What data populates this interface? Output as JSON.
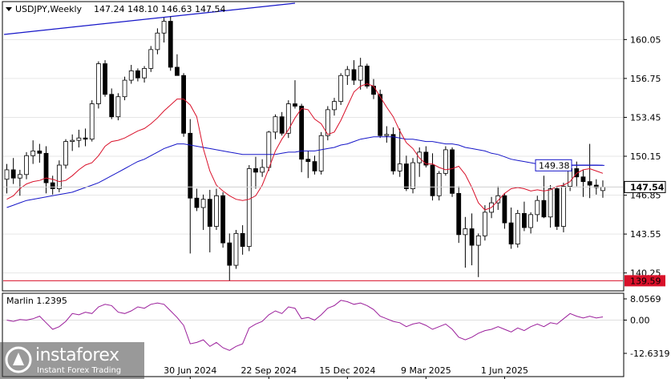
{
  "header": {
    "symbol": "USDJPY,Weekly",
    "ohlc": "147.24 148.10 146.63 147.54"
  },
  "indicator": {
    "name": "Marlin 1.2395",
    "ticks": [
      "8.0569",
      "0.00",
      "-12.6319"
    ]
  },
  "price_labels": {
    "current": "147.54",
    "ma_value": "149.38",
    "support": "139.59"
  },
  "colors": {
    "bull": "#ffffff",
    "bear": "#000000",
    "red_ma": "#d9112a",
    "blue_ma": "#1616c8",
    "oscillator": "#9b1f9b",
    "support_label_bg": "#d9112a",
    "ma_label_border": "#1616c8"
  },
  "watermark": {
    "brand": "instaforex",
    "tagline": "Instant Forex Trading"
  },
  "chart_data": {
    "type": "candlestick",
    "timeframe": "Weekly",
    "y_ticks": [
      160.05,
      156.75,
      153.45,
      150.15,
      146.85,
      143.55,
      140.25
    ],
    "ylim": [
      138.8,
      163.2
    ],
    "x_labels": [
      "30 Jun 2024",
      "22 Sep 2024",
      "15 Dec 2024",
      "9 Mar 2025",
      "1 Jun 2025"
    ],
    "x_label_bar_index": [
      28,
      40,
      52,
      64,
      76
    ],
    "horizontal_levels": [
      139.59
    ],
    "candles": [
      [
        148.2,
        149.5,
        147.0,
        149.0
      ],
      [
        149.0,
        150.0,
        147.8,
        148.3
      ],
      [
        148.3,
        149.0,
        146.8,
        148.6
      ],
      [
        148.6,
        150.5,
        148.2,
        150.2
      ],
      [
        150.2,
        151.5,
        149.5,
        150.6
      ],
      [
        150.6,
        151.2,
        149.6,
        150.4
      ],
      [
        150.4,
        151.0,
        147.0,
        147.9
      ],
      [
        147.9,
        148.5,
        146.9,
        147.4
      ],
      [
        147.4,
        149.8,
        147.1,
        149.4
      ],
      [
        149.4,
        151.6,
        149.1,
        151.4
      ],
      [
        151.4,
        152.0,
        150.6,
        151.5
      ],
      [
        151.5,
        152.4,
        150.9,
        151.7
      ],
      [
        151.7,
        152.5,
        151.0,
        151.6
      ],
      [
        151.6,
        154.9,
        151.4,
        154.6
      ],
      [
        154.6,
        158.2,
        154.2,
        158.0
      ],
      [
        158.0,
        158.3,
        155.2,
        155.4
      ],
      [
        155.4,
        155.9,
        153.3,
        153.5
      ],
      [
        153.5,
        155.5,
        153.2,
        155.2
      ],
      [
        155.2,
        156.9,
        154.9,
        156.6
      ],
      [
        156.6,
        157.9,
        156.3,
        157.4
      ],
      [
        157.4,
        157.6,
        156.5,
        156.8
      ],
      [
        156.8,
        157.8,
        156.4,
        157.6
      ],
      [
        157.6,
        159.5,
        157.3,
        159.2
      ],
      [
        159.2,
        161.0,
        158.8,
        160.6
      ],
      [
        160.6,
        161.9,
        159.8,
        161.6
      ],
      [
        161.6,
        162.0,
        157.4,
        157.7
      ],
      [
        157.7,
        158.8,
        157.0,
        157.0
      ],
      [
        157.0,
        157.2,
        151.8,
        152.1
      ],
      [
        152.1,
        153.3,
        141.9,
        146.6
      ],
      [
        146.6,
        147.4,
        145.5,
        145.8
      ],
      [
        145.8,
        146.9,
        143.9,
        146.5
      ],
      [
        146.5,
        147.3,
        142.0,
        144.2
      ],
      [
        144.2,
        147.4,
        143.9,
        146.8
      ],
      [
        146.8,
        147.1,
        142.4,
        142.8
      ],
      [
        142.8,
        143.6,
        139.6,
        140.9
      ],
      [
        140.9,
        143.9,
        140.6,
        143.6
      ],
      [
        143.6,
        144.3,
        141.8,
        142.5
      ],
      [
        142.5,
        149.4,
        142.1,
        149.1
      ],
      [
        149.1,
        150.1,
        147.4,
        148.8
      ],
      [
        148.8,
        149.9,
        148.4,
        149.2
      ],
      [
        149.2,
        152.3,
        148.9,
        152.2
      ],
      [
        152.2,
        153.7,
        151.6,
        153.5
      ],
      [
        153.5,
        153.9,
        151.9,
        152.1
      ],
      [
        152.1,
        154.9,
        151.7,
        154.6
      ],
      [
        154.6,
        156.6,
        154.2,
        154.4
      ],
      [
        154.4,
        154.6,
        148.8,
        149.9
      ],
      [
        149.9,
        150.6,
        148.3,
        149.7
      ],
      [
        149.7,
        150.2,
        148.6,
        148.9
      ],
      [
        148.9,
        152.2,
        148.6,
        151.9
      ],
      [
        151.9,
        154.4,
        151.5,
        154.1
      ],
      [
        154.1,
        155.1,
        153.6,
        154.8
      ],
      [
        154.8,
        157.2,
        154.5,
        157.0
      ],
      [
        157.0,
        157.8,
        156.2,
        157.5
      ],
      [
        157.5,
        158.3,
        156.2,
        156.6
      ],
      [
        156.6,
        158.5,
        155.8,
        157.8
      ],
      [
        157.8,
        158.0,
        155.9,
        156.1
      ],
      [
        156.1,
        156.7,
        155.0,
        155.4
      ],
      [
        155.4,
        155.8,
        151.7,
        151.9
      ],
      [
        151.9,
        152.7,
        151.3,
        152.0
      ],
      [
        152.0,
        152.6,
        148.6,
        148.9
      ],
      [
        148.9,
        152.5,
        148.4,
        149.5
      ],
      [
        149.5,
        150.2,
        147.2,
        147.4
      ],
      [
        147.4,
        150.0,
        147.0,
        149.6
      ],
      [
        149.6,
        150.9,
        148.4,
        150.5
      ],
      [
        150.5,
        151.0,
        149.2,
        149.4
      ],
      [
        149.4,
        150.4,
        146.4,
        146.8
      ],
      [
        146.8,
        148.9,
        146.4,
        148.7
      ],
      [
        148.7,
        151.0,
        148.5,
        150.7
      ],
      [
        150.7,
        150.9,
        146.7,
        147.0
      ],
      [
        147.0,
        147.6,
        142.8,
        143.5
      ],
      [
        143.5,
        145.0,
        140.7,
        144.0
      ],
      [
        144.0,
        145.3,
        140.9,
        142.6
      ],
      [
        142.6,
        143.6,
        139.9,
        143.4
      ],
      [
        143.4,
        146.0,
        143.0,
        145.4
      ],
      [
        145.4,
        146.7,
        144.9,
        146.2
      ],
      [
        146.2,
        147.6,
        145.6,
        146.8
      ],
      [
        146.8,
        147.0,
        144.0,
        144.5
      ],
      [
        144.5,
        145.8,
        142.3,
        142.7
      ],
      [
        142.7,
        145.6,
        142.4,
        145.3
      ],
      [
        145.3,
        146.3,
        143.8,
        144.1
      ],
      [
        144.1,
        145.4,
        143.6,
        145.2
      ],
      [
        145.2,
        146.8,
        144.6,
        146.4
      ],
      [
        146.4,
        148.5,
        144.9,
        145.0
      ],
      [
        145.0,
        147.7,
        144.1,
        147.4
      ],
      [
        147.4,
        147.6,
        143.9,
        144.2
      ],
      [
        144.2,
        147.9,
        143.7,
        147.6
      ],
      [
        147.6,
        149.3,
        147.2,
        149.1
      ],
      [
        149.1,
        149.7,
        147.6,
        148.4
      ],
      [
        148.4,
        149.0,
        146.7,
        148.0
      ],
      [
        148.0,
        151.2,
        146.6,
        147.7
      ],
      [
        147.7,
        148.2,
        146.9,
        147.5
      ],
      [
        147.24,
        148.1,
        146.63,
        147.54
      ]
    ],
    "red_ma": [
      146.5,
      146.8,
      147.4,
      147.8,
      148.0,
      148.1,
      148.3,
      148.2,
      148.0,
      148.1,
      148.5,
      149.0,
      149.4,
      149.6,
      150.2,
      151.0,
      151.4,
      151.5,
      151.7,
      152.0,
      152.3,
      152.5,
      152.9,
      153.4,
      154.0,
      154.5,
      155.0,
      155.0,
      154.5,
      153.5,
      150.8,
      148.9,
      147.7,
      147.2,
      146.8,
      146.5,
      146.4,
      146.5,
      146.8,
      147.7,
      149.1,
      150.6,
      151.6,
      152.4,
      153.4,
      154.2,
      154.1,
      153.3,
      152.9,
      152.0,
      152.2,
      153.2,
      154.4,
      155.6,
      156.1,
      156.3,
      156.1,
      155.2,
      154.3,
      153.5,
      152.3,
      151.3,
      150.8,
      150.0,
      149.5,
      149.5,
      149.2,
      149.0,
      149.1,
      149.3,
      148.6,
      147.5,
      146.2,
      145.6,
      145.8,
      146.4,
      147.0,
      147.4,
      147.5,
      147.4,
      147.2,
      147.3,
      147.2,
      147.3,
      147.6,
      147.7,
      148.0,
      148.7,
      149.0,
      149.1,
      148.9,
      148.7
    ],
    "blue_ma": [
      145.8,
      146.0,
      146.2,
      146.4,
      146.5,
      146.6,
      146.7,
      146.8,
      146.9,
      147.0,
      147.1,
      147.3,
      147.5,
      147.7,
      147.9,
      148.2,
      148.5,
      148.8,
      149.1,
      149.4,
      149.7,
      149.9,
      150.2,
      150.5,
      150.8,
      151.0,
      151.2,
      151.2,
      151.1,
      151.0,
      150.9,
      150.8,
      150.7,
      150.6,
      150.5,
      150.4,
      150.3,
      150.3,
      150.3,
      150.3,
      150.3,
      150.3,
      150.4,
      150.5,
      150.5,
      150.6,
      150.6,
      150.6,
      150.7,
      150.8,
      150.9,
      151.1,
      151.2,
      151.4,
      151.6,
      151.7,
      151.8,
      151.8,
      151.8,
      151.8,
      151.7,
      151.6,
      151.6,
      151.5,
      151.4,
      151.4,
      151.3,
      151.2,
      151.2,
      151.1,
      150.9,
      150.8,
      150.7,
      150.6,
      150.4,
      150.3,
      150.1,
      149.9,
      149.8,
      149.7,
      149.6,
      149.5,
      149.5,
      149.4,
      149.4,
      149.4,
      149.4,
      149.4,
      149.4,
      149.4,
      149.4,
      149.38
    ],
    "oscillator": {
      "name": "Marlin 1.2395",
      "ylim": [
        -12.6319,
        8.0569
      ],
      "y_ticks": [
        8.0569,
        0.0,
        -12.6319
      ],
      "values": [
        0.0,
        -0.5,
        0.2,
        0.0,
        0.5,
        1.5,
        -1.0,
        -3.5,
        -2.5,
        -0.5,
        2.5,
        2.0,
        3.0,
        2.5,
        5.0,
        6.0,
        5.5,
        3.0,
        2.5,
        3.5,
        5.0,
        4.5,
        6.0,
        6.5,
        6.0,
        3.5,
        1.0,
        -2.0,
        -9.0,
        -8.5,
        -7.5,
        -10.0,
        -8.5,
        -10.5,
        -11.5,
        -10.0,
        -9.0,
        -3.0,
        -1.5,
        -0.5,
        2.0,
        3.5,
        2.5,
        5.0,
        4.5,
        0.5,
        1.0,
        0.0,
        2.0,
        4.5,
        5.5,
        7.5,
        7.0,
        6.0,
        6.5,
        5.5,
        4.0,
        1.5,
        0.5,
        -0.5,
        -1.0,
        -2.5,
        -1.5,
        -1.0,
        -2.0,
        -3.5,
        -2.5,
        -1.5,
        -3.5,
        -6.5,
        -7.5,
        -6.5,
        -5.0,
        -4.0,
        -3.5,
        -2.5,
        -3.5,
        -4.5,
        -3.0,
        -4.0,
        -2.5,
        -1.5,
        -2.5,
        -1.0,
        -1.5,
        0.5,
        2.5,
        1.5,
        0.8,
        1.5,
        0.8,
        1.2
      ]
    }
  }
}
